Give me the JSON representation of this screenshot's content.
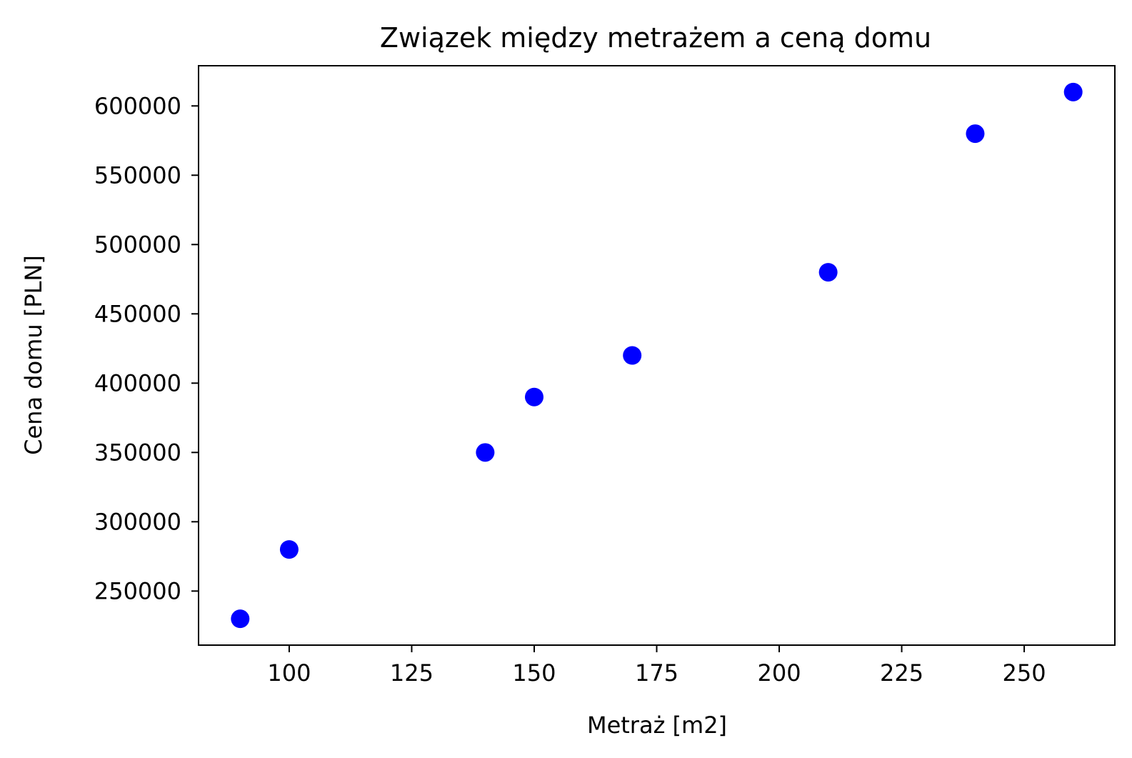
{
  "chart_data": {
    "type": "scatter",
    "title": "Związek między metrażem a ceną domu",
    "xlabel": "Metraż [m2]",
    "ylabel": "Cena domu [PLN]",
    "xlim": [
      81.5,
      268.5
    ],
    "ylim": [
      211000,
      629000
    ],
    "x_ticks": [
      100,
      125,
      150,
      175,
      200,
      225,
      250
    ],
    "y_ticks": [
      250000,
      300000,
      350000,
      400000,
      450000,
      500000,
      550000,
      600000
    ],
    "grid": false,
    "marker_color": "#0000ff",
    "points": [
      {
        "x": 90,
        "y": 230000
      },
      {
        "x": 100,
        "y": 280000
      },
      {
        "x": 140,
        "y": 350000
      },
      {
        "x": 150,
        "y": 390000
      },
      {
        "x": 170,
        "y": 420000
      },
      {
        "x": 210,
        "y": 480000
      },
      {
        "x": 240,
        "y": 580000
      },
      {
        "x": 260,
        "y": 610000
      }
    ]
  }
}
